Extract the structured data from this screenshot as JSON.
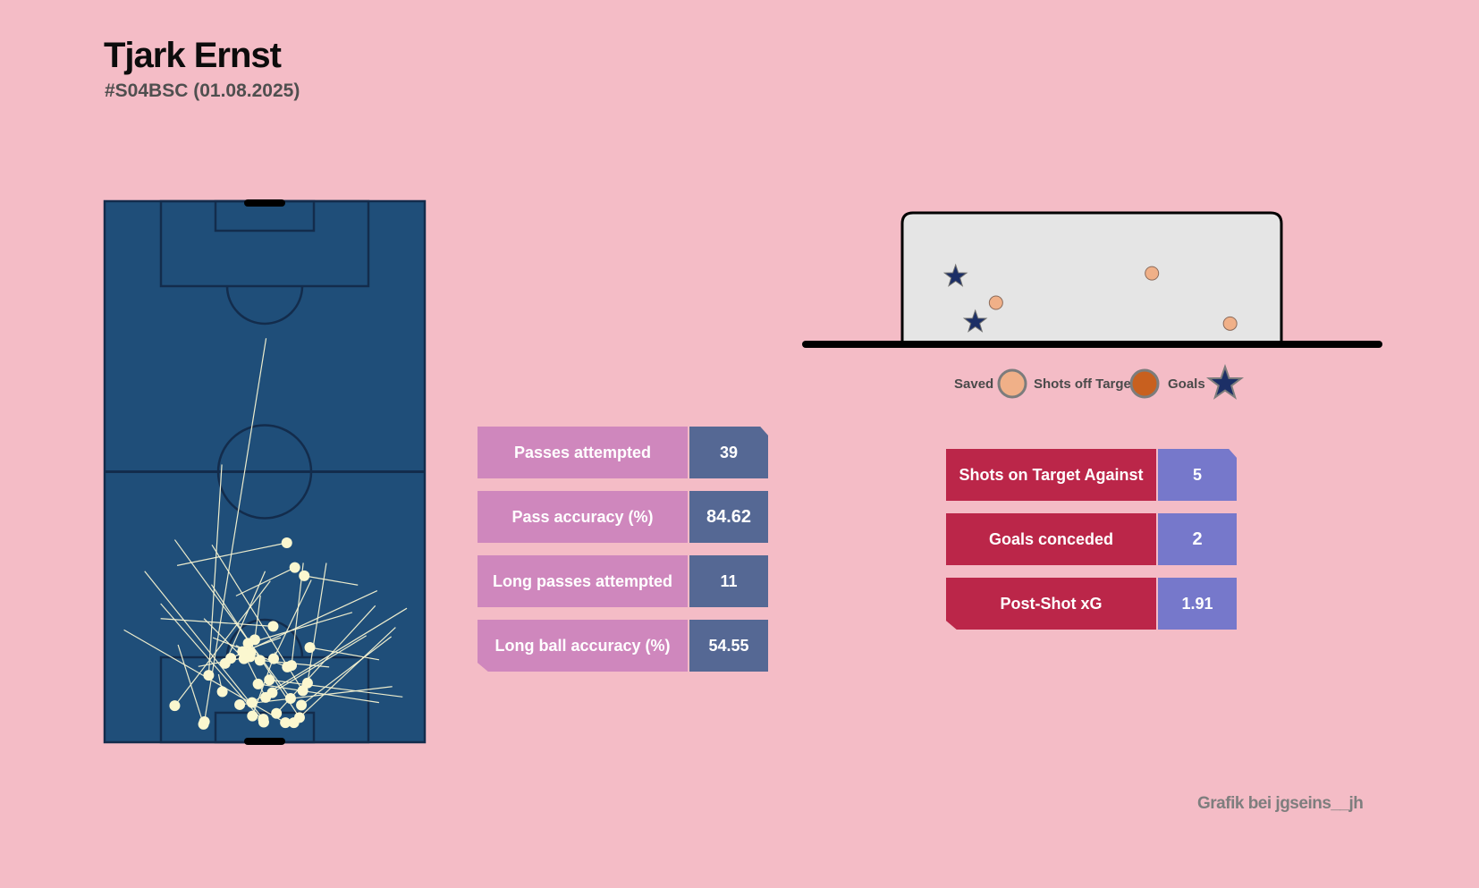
{
  "header": {
    "title": "Tjark Ernst",
    "subtitle": "#S04BSC (01.08.2025)"
  },
  "credit": "Grafik bei jgseins__jh",
  "colors": {
    "background": "#f4bcc6",
    "pitch": "#1f4e79",
    "pitch_lines": "#132c4c",
    "pass_line": "#f8f5d2",
    "pass_dot": "#fbf7cf",
    "pass_label_bg": "#cf87bd",
    "pass_value_bg": "#556894",
    "shot_label_bg": "#bb2649",
    "shot_value_bg": "#7678cb",
    "goal_face": "#e5e5e5",
    "saved": "#f0b088",
    "off_target": "#c8601f",
    "goal_star": "#1c2f66"
  },
  "passing_stats": [
    {
      "label": "Passes attempted",
      "value": "39"
    },
    {
      "label": "Pass accuracy (%)",
      "value": "84.62"
    },
    {
      "label": "Long passes attempted",
      "value": "11"
    },
    {
      "label": "Long ball accuracy (%)",
      "value": "54.55"
    }
  ],
  "shot_stats": [
    {
      "label": "Shots on Target Against",
      "value": "5"
    },
    {
      "label": "Goals conceded",
      "value": "2"
    },
    {
      "label": "Post-Shot xG",
      "value": "1.91"
    }
  ],
  "legend": [
    {
      "label": "Saved",
      "marker": "circle",
      "color": "#f0b088"
    },
    {
      "label": "Shots off Target",
      "marker": "circle",
      "color": "#c8601f"
    },
    {
      "label": "Goals",
      "marker": "star",
      "color": "#1c2f66"
    }
  ],
  "chart_data": [
    {
      "type": "scatter",
      "name": "pass-map",
      "pitch": {
        "length": 105,
        "width": 68
      },
      "passes": [
        {
          "start": [
            4.0,
            21.2
          ],
          "end": [
            78.4,
            34.3
          ]
        },
        {
          "start": [
            13.0,
            22.1
          ],
          "end": [
            53.9,
            24.9
          ]
        },
        {
          "start": [
            38.7,
            38.7
          ],
          "end": [
            34.3,
            15.4
          ]
        },
        {
          "start": [
            33.9,
            40.4
          ],
          "end": [
            28.4,
            27.9
          ]
        },
        {
          "start": [
            32.3,
            42.4
          ],
          "end": [
            30.5,
            53.8
          ]
        },
        {
          "start": [
            3.5,
            21.0
          ],
          "end": [
            18.9,
            15.6
          ]
        },
        {
          "start": [
            7.2,
            41.8
          ],
          "end": [
            20.5,
            60.9
          ]
        },
        {
          "start": [
            8.5,
            39.5
          ],
          "end": [
            39.3,
            14.9
          ]
        },
        {
          "start": [
            4.8,
            41.4
          ],
          "end": [
            30.6,
            22.7
          ]
        },
        {
          "start": [
            16.2,
            35.9
          ],
          "end": [
            31.5,
            43.9
          ]
        },
        {
          "start": [
            5.6,
            36.5
          ],
          "end": [
            26.5,
            57.5
          ]
        },
        {
          "start": [
            3.8,
            38.4
          ],
          "end": [
            21.8,
            4.1
          ]
        },
        {
          "start": [
            18.4,
            43.6
          ],
          "end": [
            16.0,
            58.3
          ]
        },
        {
          "start": [
            11.5,
            43.1
          ],
          "end": [
            34.8,
            47.1
          ]
        },
        {
          "start": [
            4.5,
            33.7
          ],
          "end": [
            33.2,
            8.5
          ]
        },
        {
          "start": [
            14.9,
            39.7
          ],
          "end": [
            34.8,
            42.2
          ]
        },
        {
          "start": [
            22.5,
            35.8
          ],
          "end": [
            24.0,
            11.9
          ]
        },
        {
          "start": [
            10.0,
            42.1
          ],
          "end": [
            38.3,
            22.8
          ]
        },
        {
          "start": [
            16.2,
            29.6
          ],
          "end": [
            24.0,
            21.1
          ]
        },
        {
          "start": [
            17.4,
            31.0
          ],
          "end": [
            18.8,
            27.9
          ]
        },
        {
          "start": [
            7.1,
            14.9
          ],
          "end": [
            31.3,
            35.2
          ]
        },
        {
          "start": [
            12.1,
            35.0
          ],
          "end": [
            8.8,
            63.3
          ]
        },
        {
          "start": [
            9.8,
            25.0
          ],
          "end": [
            13.2,
            24.2
          ]
        },
        {
          "start": [
            7.7,
            31.3
          ],
          "end": [
            26.0,
            64.2
          ]
        },
        {
          "start": [
            14.6,
            38.8
          ],
          "end": [
            20.3,
            23.0
          ]
        },
        {
          "start": [
            19.9,
            31.9
          ],
          "end": [
            28.5,
            33.1
          ]
        },
        {
          "start": [
            11.3,
            32.6
          ],
          "end": [
            7.7,
            58.3
          ]
        },
        {
          "start": [
            7.3,
            28.7
          ],
          "end": [
            10.8,
            61.1
          ]
        },
        {
          "start": [
            3.8,
            40.2
          ],
          "end": [
            22.3,
            61.8
          ]
        },
        {
          "start": [
            9.6,
            35.6
          ],
          "end": [
            20.7,
            55.6
          ]
        },
        {
          "start": [
            5.1,
            31.4
          ],
          "end": [
            17.5,
            36.3
          ]
        },
        {
          "start": [
            8.7,
            34.2
          ],
          "end": [
            16.6,
            29.9
          ]
        },
        {
          "start": [
            15.3,
            25.6
          ],
          "end": [
            33.2,
            34.1
          ]
        },
        {
          "start": [
            16.6,
            30.9
          ],
          "end": [
            14.7,
            19.9
          ]
        },
        {
          "start": [
            3.9,
            33.8
          ],
          "end": [
            26.9,
            11.9
          ]
        },
        {
          "start": [
            16.3,
            26.8
          ],
          "end": [
            29.4,
            57.9
          ]
        },
        {
          "start": [
            15.9,
            33.0
          ],
          "end": [
            14.6,
            47.7
          ]
        },
        {
          "start": [
            17.6,
            29.3
          ],
          "end": [
            20.3,
            37.4
          ]
        },
        {
          "start": [
            19.2,
            30.5
          ],
          "end": [
            25.2,
            52.6
          ]
        }
      ]
    },
    {
      "type": "scatter",
      "name": "goal-shot-map",
      "goal": {
        "width": 7.32,
        "height": 2.44
      },
      "shots": [
        {
          "x": 1.03,
          "y": 1.25,
          "outcome": "Goals"
        },
        {
          "x": 1.41,
          "y": 0.4,
          "outcome": "Goals"
        },
        {
          "x": 1.81,
          "y": 0.76,
          "outcome": "Saved"
        },
        {
          "x": 4.82,
          "y": 1.31,
          "outcome": "Saved"
        },
        {
          "x": 6.33,
          "y": 0.37,
          "outcome": "Saved"
        }
      ]
    }
  ]
}
